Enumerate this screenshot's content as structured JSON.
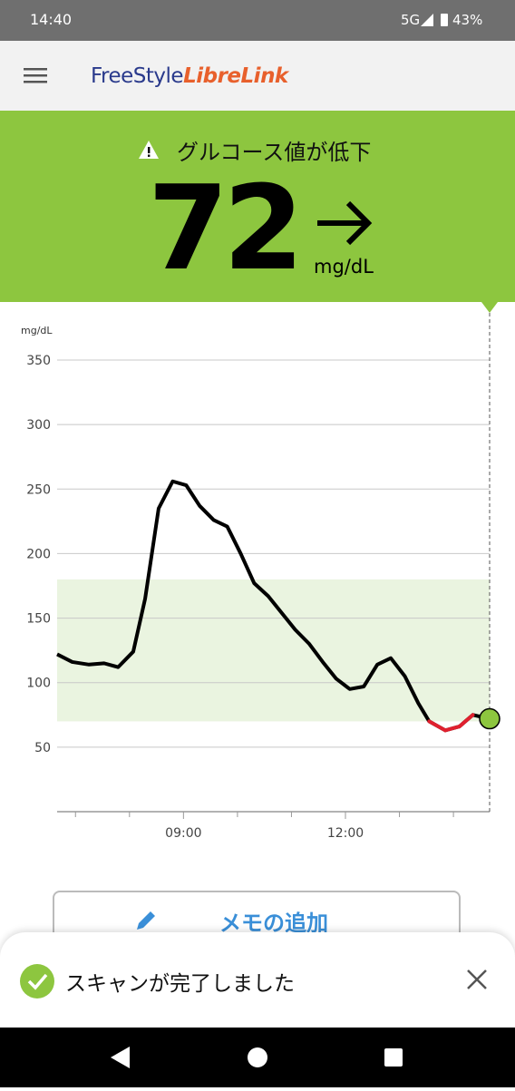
{
  "status_bar": {
    "time": "14:40",
    "network": "5G",
    "battery": "43%"
  },
  "app_bar": {
    "logo_part1": "FreeStyle",
    "logo_part2": "LibreLink"
  },
  "banner": {
    "message": "グルコース値が低下",
    "reading": "72",
    "unit": "mg/dL"
  },
  "chart_data": {
    "type": "line",
    "y_unit": "mg/dL",
    "x": [
      6.66,
      6.94,
      7.25,
      7.53,
      7.79,
      8.07,
      8.29,
      8.54,
      8.8,
      9.05,
      9.3,
      9.56,
      9.81,
      10.06,
      10.31,
      10.57,
      10.82,
      11.07,
      11.33,
      11.58,
      11.83,
      12.08,
      12.34,
      12.59,
      12.84,
      13.1,
      13.35,
      13.55,
      13.85,
      14.11,
      14.36,
      14.67
    ],
    "series": [
      {
        "color": "#000000",
        "low_color": "#e0202e",
        "values": [
          122,
          116,
          114,
          115,
          112,
          124,
          165,
          235,
          256,
          253,
          237,
          226,
          221,
          200,
          177,
          167,
          154,
          141,
          130,
          116,
          103,
          95,
          97,
          114,
          119,
          105,
          84,
          70,
          63,
          66,
          75,
          72
        ]
      }
    ],
    "target_range": [
      70,
      180
    ],
    "target_color": "#eaf4e0",
    "current_color": "#8dc63f",
    "xlim": [
      6.66,
      14.67
    ],
    "ylim": [
      0,
      350
    ],
    "yticks": [
      50,
      100,
      150,
      200,
      250,
      300,
      350
    ],
    "xticks": [
      {
        "value": 9,
        "label": "09:00"
      },
      {
        "value": 12,
        "label": "12:00"
      }
    ],
    "xminor_ticks": [
      7,
      8,
      10,
      11,
      13,
      14
    ],
    "grid": true
  },
  "memo_button": "メモの追加",
  "toast": {
    "message": "スキャンが完了しました"
  }
}
